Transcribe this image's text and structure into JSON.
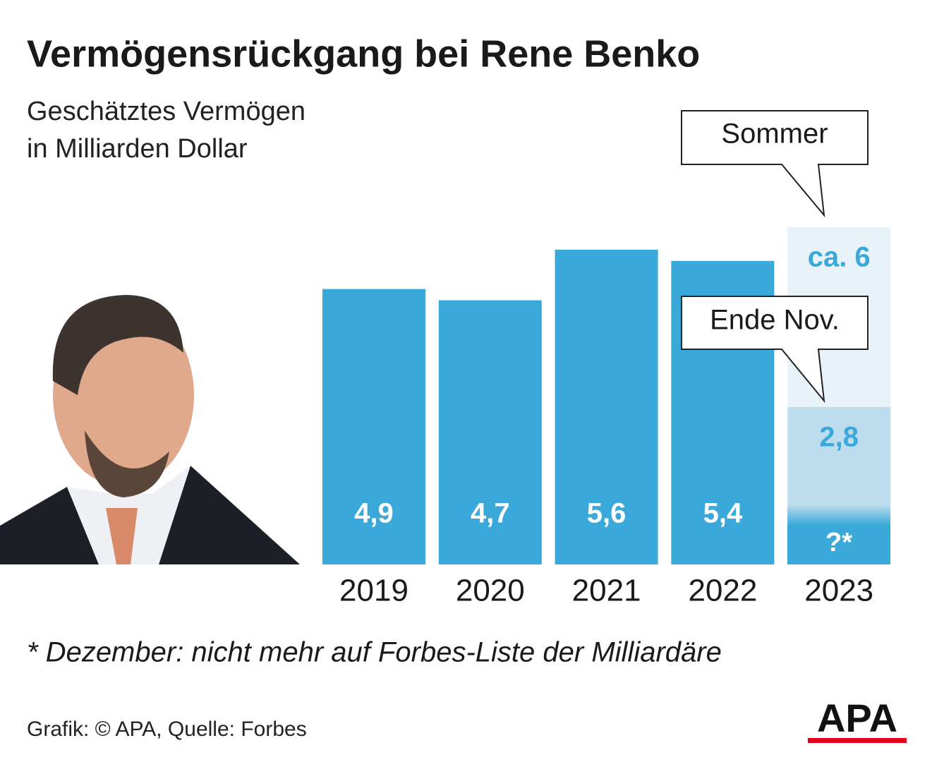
{
  "chart_data": {
    "type": "bar",
    "title": "Vermögensrückgang bei Rene Benko",
    "subtitle": [
      "Geschätztes Vermögen",
      "in Milliarden Dollar"
    ],
    "categories": [
      "2019",
      "2020",
      "2021",
      "2022",
      "2023"
    ],
    "values": [
      4.9,
      4.7,
      5.6,
      5.4,
      null
    ],
    "value_labels": [
      "4,9",
      "4,7",
      "5,6",
      "5,4",
      null
    ],
    "color": "#3aa8d8",
    "estimates": [
      {
        "label": "Sommer",
        "value": 6,
        "value_label": "ca. 6",
        "color": "#e8f2f9"
      },
      {
        "label": "Ende Nov.",
        "value": 2.8,
        "value_label": "2,8",
        "color": "#bddcee"
      }
    ],
    "unknown_label": "?*",
    "ylim": [
      0,
      6
    ],
    "footnote": "* Dezember: nicht mehr auf Forbes-Liste der Milliardäre",
    "source": "Grafik: © APA, Quelle: Forbes",
    "logo": "APA"
  }
}
